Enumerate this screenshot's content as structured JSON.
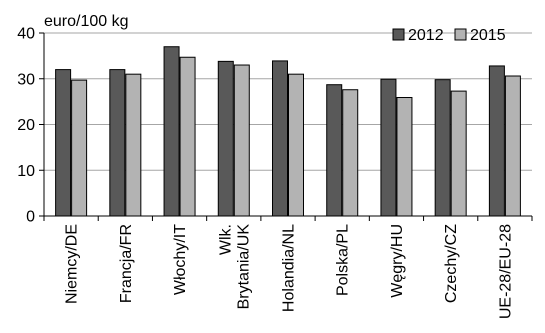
{
  "chart_data": {
    "type": "bar",
    "title": "",
    "xlabel": "",
    "ylabel": "euro/100 kg",
    "ylim": [
      0,
      40
    ],
    "yticks": [
      0,
      10,
      20,
      30,
      40
    ],
    "grid": true,
    "legend_position": "top-right",
    "categories": [
      "Niemcy/DE",
      "Francja/FR",
      "Włochy/IT",
      "Wlk. Brytania/UK",
      "Holandia/NL",
      "Polska/PL",
      "Węgry/HU",
      "Czechy/CZ",
      "UE-28/EU-28"
    ],
    "category_lines": [
      [
        "Niemcy/DE"
      ],
      [
        "Francja/FR"
      ],
      [
        "Włochy/IT"
      ],
      [
        "Wlk.",
        "Brytania/UK"
      ],
      [
        "Holandia/NL"
      ],
      [
        "Polska/PL"
      ],
      [
        "Węgry/HU"
      ],
      [
        "Czechy/CZ"
      ],
      [
        "UE-28/EU-28"
      ]
    ],
    "series": [
      {
        "name": "2012",
        "color": "#595959",
        "values": [
          32.0,
          32.0,
          37.0,
          33.8,
          33.9,
          28.7,
          29.9,
          29.8,
          32.8
        ]
      },
      {
        "name": "2015",
        "color": "#b3b3b3",
        "values": [
          29.7,
          31.0,
          34.7,
          33.0,
          31.0,
          27.6,
          25.9,
          27.3,
          30.6
        ]
      }
    ]
  }
}
